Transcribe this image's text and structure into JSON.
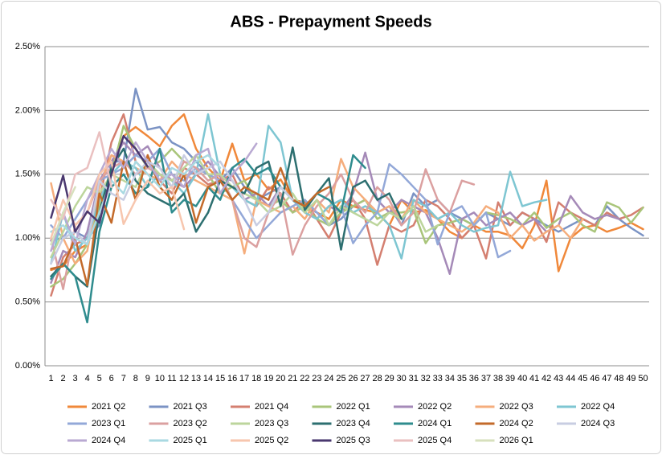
{
  "chart_data": {
    "type": "line",
    "title": "ABS - Prepayment Speeds",
    "categories": [
      1,
      2,
      3,
      4,
      5,
      6,
      7,
      8,
      9,
      10,
      11,
      12,
      13,
      14,
      15,
      16,
      17,
      18,
      19,
      20,
      21,
      22,
      23,
      24,
      25,
      26,
      27,
      28,
      29,
      30,
      31,
      32,
      33,
      34,
      35,
      36,
      37,
      38,
      39,
      40,
      41,
      42,
      43,
      44,
      45,
      46,
      47,
      48,
      49,
      50
    ],
    "ylim": [
      0,
      2.5
    ],
    "yticks": [
      {
        "value": 0,
        "label": "0.00%"
      },
      {
        "value": 0.5,
        "label": "0.50%"
      },
      {
        "value": 1,
        "label": "1.00%"
      },
      {
        "value": 1.5,
        "label": "1.50%"
      },
      {
        "value": 2,
        "label": "2.00%"
      },
      {
        "value": 2.5,
        "label": "2.50%"
      }
    ],
    "grid": true,
    "legend": "bottom",
    "series": [
      {
        "name": "2021 Q2",
        "color": "#f0883a",
        "values": [
          0.75,
          0.78,
          0.9,
          0.95,
          1.2,
          1.55,
          1.8,
          1.87,
          1.8,
          1.72,
          1.88,
          1.97,
          1.7,
          1.55,
          1.45,
          1.74,
          1.45,
          1.5,
          1.38,
          1.46,
          1.3,
          1.28,
          1.2,
          1.15,
          1.3,
          1.25,
          1.22,
          1.2,
          1.1,
          1.3,
          1.2,
          1.22,
          1.15,
          1.05,
          1.0,
          1.1,
          1.05,
          1.05,
          1.02,
          0.92,
          1.1,
          1.45,
          0.74,
          1.0,
          1.08,
          1.1,
          1.05,
          1.08,
          1.12,
          1.07
        ]
      },
      {
        "name": "2021 Q3",
        "color": "#7b93c4",
        "values": [
          0.98,
          1.0,
          1.05,
          1.0,
          1.1,
          1.6,
          1.6,
          2.17,
          1.85,
          1.87,
          1.75,
          1.7,
          1.6,
          1.5,
          1.45,
          1.55,
          1.4,
          1.3,
          1.35,
          1.4,
          1.3,
          1.25,
          1.2,
          1.1,
          1.15,
          1.25,
          1.3,
          1.2,
          1.25,
          1.1,
          1.35,
          1.25,
          1.3,
          1.2,
          1.15,
          1.1,
          1.2,
          1.15,
          1.1,
          1.2,
          1.15,
          1.1,
          1.05,
          1.1,
          1.15,
          1.1,
          1.25,
          1.15,
          1.08,
          1.02
        ]
      },
      {
        "name": "2021 Q4",
        "color": "#d47f70",
        "values": [
          0.55,
          0.85,
          0.95,
          1.0,
          1.3,
          1.75,
          1.97,
          1.6,
          1.5,
          1.45,
          1.35,
          1.55,
          1.5,
          1.42,
          1.45,
          1.5,
          1.3,
          1.25,
          1.4,
          1.35,
          1.2,
          1.3,
          1.15,
          1.0,
          1.2,
          1.3,
          1.15,
          0.79,
          1.1,
          1.05,
          1.1,
          1.3,
          1.25,
          1.15,
          1.0,
          1.1,
          0.84,
          1.28,
          1.1,
          1.2,
          1.15,
          0.97,
          1.28,
          1.2,
          1.15,
          1.1,
          1.2,
          1.15,
          1.18,
          1.24
        ]
      },
      {
        "name": "2022 Q1",
        "color": "#a9c57a",
        "values": [
          0.62,
          0.68,
          0.8,
          0.95,
          1.25,
          1.5,
          1.88,
          1.7,
          1.55,
          1.6,
          1.7,
          1.6,
          1.55,
          1.5,
          1.35,
          1.4,
          1.45,
          1.3,
          1.25,
          1.3,
          1.2,
          1.25,
          1.15,
          1.1,
          1.2,
          1.25,
          1.3,
          1.15,
          1.2,
          1.2,
          1.22,
          0.96,
          1.1,
          1.12,
          1.15,
          1.1,
          1.2,
          1.18,
          1.15,
          1.1,
          1.2,
          1.08,
          1.15,
          1.2,
          1.1,
          1.05,
          1.28,
          1.24,
          1.12,
          1.24
        ]
      },
      {
        "name": "2022 Q2",
        "color": "#a58ab8",
        "values": [
          0.65,
          0.9,
          0.85,
          1.05,
          1.45,
          1.6,
          1.75,
          1.65,
          1.72,
          1.55,
          1.45,
          1.4,
          1.5,
          1.6,
          1.48,
          1.45,
          1.3,
          1.35,
          1.25,
          1.4,
          1.3,
          1.2,
          1.15,
          1.25,
          1.2,
          1.35,
          1.67,
          1.3,
          1.2,
          1.3,
          1.25,
          1.2,
          1.0,
          0.72,
          1.15,
          1.2,
          1.1,
          1.15,
          1.2,
          1.1,
          1.15,
          1.05,
          1.1,
          1.33,
          1.2,
          1.15,
          1.18,
          1.15,
          null,
          null
        ]
      },
      {
        "name": "2022 Q3",
        "color": "#f5ad7c",
        "values": [
          1.43,
          1.0,
          0.8,
          0.9,
          1.4,
          1.65,
          1.6,
          1.55,
          1.5,
          1.45,
          1.6,
          1.5,
          1.45,
          1.4,
          1.35,
          1.3,
          0.88,
          1.3,
          1.25,
          1.2,
          1.25,
          1.15,
          1.3,
          1.2,
          1.62,
          1.4,
          1.3,
          1.2,
          1.25,
          1.15,
          1.3,
          1.2,
          1.15,
          1.1,
          1.05,
          1.12,
          1.25,
          1.2,
          1.0,
          1.1,
          0.98,
          1.05,
          1.1,
          1.0,
          1.15,
          null,
          null,
          null,
          null,
          null
        ]
      },
      {
        "name": "2022 Q4",
        "color": "#7ec6d2",
        "values": [
          0.8,
          1.2,
          0.9,
          1.0,
          1.3,
          1.5,
          1.6,
          1.55,
          1.4,
          1.5,
          1.45,
          1.35,
          1.5,
          1.97,
          1.5,
          1.4,
          1.3,
          1.25,
          1.88,
          1.75,
          1.3,
          1.2,
          1.15,
          1.25,
          1.3,
          1.2,
          1.25,
          1.2,
          1.1,
          0.84,
          1.3,
          1.25,
          1.15,
          1.2,
          1.1,
          1.05,
          1.08,
          1.1,
          1.52,
          1.25,
          1.28,
          1.3,
          null,
          null,
          null,
          null,
          null,
          null,
          null,
          null
        ]
      },
      {
        "name": "2023 Q1",
        "color": "#93a8d8",
        "values": [
          1.1,
          1.0,
          1.15,
          1.3,
          1.45,
          1.5,
          1.55,
          1.65,
          1.6,
          1.7,
          1.5,
          1.45,
          1.55,
          1.5,
          1.45,
          1.3,
          1.15,
          1.0,
          1.1,
          1.2,
          1.25,
          1.3,
          1.2,
          1.1,
          1.25,
          0.96,
          1.1,
          1.2,
          1.58,
          1.5,
          1.4,
          1.3,
          0.95,
          1.2,
          1.25,
          1.1,
          1.2,
          0.85,
          0.9,
          null,
          null,
          null,
          null,
          null,
          null,
          null,
          null,
          null,
          null,
          null
        ]
      },
      {
        "name": "2023 Q2",
        "color": "#dba0a0",
        "values": [
          1.0,
          0.6,
          1.1,
          1.2,
          1.45,
          1.55,
          1.6,
          1.5,
          1.55,
          1.5,
          1.4,
          1.6,
          1.55,
          1.45,
          1.5,
          1.3,
          1.0,
          0.93,
          1.2,
          1.35,
          0.87,
          1.1,
          1.25,
          1.35,
          1.5,
          1.3,
          1.2,
          1.4,
          1.3,
          1.1,
          1.2,
          1.54,
          1.3,
          1.2,
          1.45,
          1.42,
          null,
          null,
          null,
          null,
          null,
          null,
          null,
          null,
          null,
          null,
          null,
          null,
          null,
          null
        ]
      },
      {
        "name": "2023 Q3",
        "color": "#bcd59c",
        "values": [
          0.85,
          1.05,
          1.25,
          1.4,
          1.35,
          1.5,
          1.45,
          1.4,
          1.6,
          1.5,
          1.45,
          1.55,
          1.65,
          1.5,
          1.5,
          1.4,
          1.35,
          1.3,
          1.2,
          1.25,
          1.35,
          1.2,
          1.3,
          1.1,
          1.25,
          1.2,
          1.15,
          1.1,
          1.2,
          1.15,
          1.25,
          1.05,
          1.1,
          null,
          null,
          null,
          null,
          null,
          null,
          null,
          null,
          null,
          null,
          null,
          null,
          null,
          null,
          null,
          null,
          null
        ]
      },
      {
        "name": "2023 Q4",
        "color": "#2d6f70",
        "values": [
          0.7,
          0.8,
          0.7,
          0.62,
          1.2,
          1.55,
          1.7,
          1.45,
          1.35,
          1.3,
          1.25,
          1.35,
          1.05,
          1.2,
          1.45,
          1.4,
          1.35,
          1.55,
          1.6,
          1.25,
          1.71,
          1.22,
          1.35,
          1.47,
          0.91,
          1.4,
          1.45,
          1.3,
          1.35,
          1.15,
          null,
          null,
          null,
          null,
          null,
          null,
          null,
          null,
          null,
          null,
          null,
          null,
          null,
          null,
          null,
          null,
          null,
          null,
          null,
          null
        ]
      },
      {
        "name": "2024 Q1",
        "color": "#2f8c8e",
        "values": [
          0.68,
          0.8,
          0.7,
          0.34,
          1.05,
          1.4,
          1.5,
          1.35,
          1.4,
          1.7,
          1.2,
          1.3,
          1.25,
          1.4,
          1.3,
          1.55,
          1.62,
          1.5,
          1.55,
          1.4,
          1.3,
          1.25,
          1.35,
          1.3,
          1.2,
          1.65,
          1.55,
          null,
          null,
          null,
          null,
          null,
          null,
          null,
          null,
          null,
          null,
          null,
          null,
          null,
          null,
          null,
          null,
          null,
          null,
          null,
          null,
          null,
          null,
          null
        ]
      },
      {
        "name": "2024 Q2",
        "color": "#c36a2a",
        "values": [
          0.76,
          0.78,
          1.0,
          0.63,
          1.35,
          1.12,
          1.6,
          1.3,
          1.65,
          1.4,
          1.3,
          1.5,
          1.12,
          1.4,
          1.45,
          1.3,
          1.4,
          1.35,
          1.3,
          1.55,
          1.3,
          1.25,
          1.35,
          1.4,
          null,
          null,
          null,
          null,
          null,
          null,
          null,
          null,
          null,
          null,
          null,
          null,
          null,
          null,
          null,
          null,
          null,
          null,
          null,
          null,
          null,
          null,
          null,
          null,
          null,
          null
        ]
      },
      {
        "name": "2024 Q3",
        "color": "#c8cde2",
        "values": [
          0.8,
          1.0,
          1.05,
          0.95,
          1.45,
          1.35,
          1.3,
          1.5,
          1.6,
          1.55,
          1.4,
          1.65,
          1.5,
          1.55,
          1.6,
          1.45,
          1.3,
          1.1,
          1.2,
          1.4,
          1.3,
          null,
          null,
          null,
          null,
          null,
          null,
          null,
          null,
          null,
          null,
          null,
          null,
          null,
          null,
          null,
          null,
          null,
          null,
          null,
          null,
          null,
          null,
          null,
          null,
          null,
          null,
          null,
          null,
          null
        ]
      },
      {
        "name": "2024 Q4",
        "color": "#b9a9d2",
        "values": [
          0.9,
          1.2,
          0.95,
          1.3,
          1.5,
          1.7,
          1.55,
          1.75,
          1.6,
          1.45,
          1.5,
          1.4,
          1.65,
          1.7,
          1.35,
          1.5,
          1.6,
          1.74,
          null,
          null,
          null,
          null,
          null,
          null,
          null,
          null,
          null,
          null,
          null,
          null,
          null,
          null,
          null,
          null,
          null,
          null,
          null,
          null,
          null,
          null,
          null,
          null,
          null,
          null,
          null,
          null,
          null,
          null,
          null,
          null
        ]
      },
      {
        "name": "2025 Q1",
        "color": "#a9d9e2",
        "values": [
          1.05,
          1.1,
          1.0,
          0.95,
          1.2,
          1.45,
          1.35,
          1.6,
          1.5,
          1.4,
          1.55,
          1.5,
          1.6,
          1.65,
          1.55,
          null,
          null,
          null,
          null,
          null,
          null,
          null,
          null,
          null,
          null,
          null,
          null,
          null,
          null,
          null,
          null,
          null,
          null,
          null,
          null,
          null,
          null,
          null,
          null,
          null,
          null,
          null,
          null,
          null,
          null,
          null,
          null,
          null,
          null,
          null
        ]
      },
      {
        "name": "2025 Q2",
        "color": "#f7c6ae",
        "values": [
          1.0,
          1.3,
          1.1,
          1.2,
          1.5,
          1.6,
          1.11,
          1.3,
          1.45,
          1.35,
          1.4,
          1.07,
          null,
          null,
          null,
          null,
          null,
          null,
          null,
          null,
          null,
          null,
          null,
          null,
          null,
          null,
          null,
          null,
          null,
          null,
          null,
          null,
          null,
          null,
          null,
          null,
          null,
          null,
          null,
          null,
          null,
          null,
          null,
          null,
          null,
          null,
          null,
          null,
          null,
          null
        ]
      },
      {
        "name": "2025 Q3",
        "color": "#4a386f",
        "values": [
          1.16,
          1.49,
          1.05,
          1.21,
          1.12,
          1.5,
          1.8,
          1.7,
          1.56,
          null,
          null,
          null,
          null,
          null,
          null,
          null,
          null,
          null,
          null,
          null,
          null,
          null,
          null,
          null,
          null,
          null,
          null,
          null,
          null,
          null,
          null,
          null,
          null,
          null,
          null,
          null,
          null,
          null,
          null,
          null,
          null,
          null,
          null,
          null,
          null,
          null,
          null,
          null,
          null,
          null
        ]
      },
      {
        "name": "2025 Q4",
        "color": "#eac0c0",
        "values": [
          1.3,
          1.15,
          1.5,
          1.55,
          1.83,
          1.4,
          null,
          null,
          null,
          null,
          null,
          null,
          null,
          null,
          null,
          null,
          null,
          null,
          null,
          null,
          null,
          null,
          null,
          null,
          null,
          null,
          null,
          null,
          null,
          null,
          null,
          null,
          null,
          null,
          null,
          null,
          null,
          null,
          null,
          null,
          null,
          null,
          null,
          null,
          null,
          null,
          null,
          null,
          null,
          null
        ]
      },
      {
        "name": "2026 Q1",
        "color": "#d7e0bd",
        "values": [
          0.95,
          1.2,
          1.4,
          null,
          null,
          null,
          null,
          null,
          null,
          null,
          null,
          null,
          null,
          null,
          null,
          null,
          null,
          null,
          null,
          null,
          null,
          null,
          null,
          null,
          null,
          null,
          null,
          null,
          null,
          null,
          null,
          null,
          null,
          null,
          null,
          null,
          null,
          null,
          null,
          null,
          null,
          null,
          null,
          null,
          null,
          null,
          null,
          null,
          null,
          null
        ]
      }
    ]
  }
}
